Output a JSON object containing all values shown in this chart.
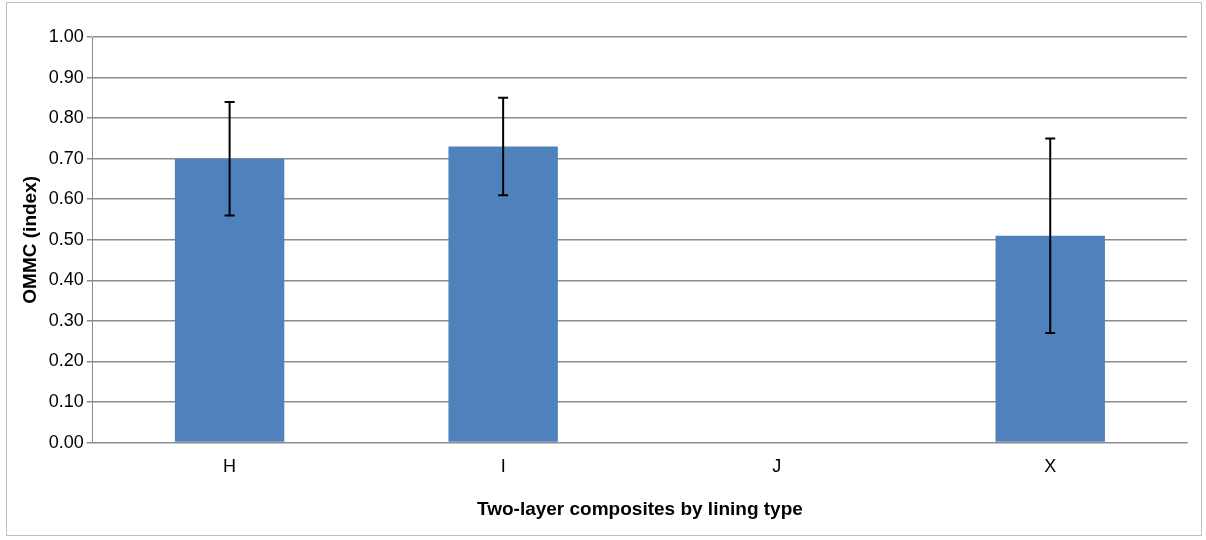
{
  "chart_data": {
    "type": "bar",
    "xlabel": "Two-layer composites by lining type",
    "ylabel": "OMMC (index)",
    "categories": [
      "H",
      "I",
      "J",
      "X"
    ],
    "values": [
      0.7,
      0.73,
      0,
      0.51
    ],
    "errors": [
      0.14,
      0.12,
      null,
      0.24
    ],
    "color": "#4f81bd",
    "ylim": [
      0,
      1
    ],
    "yticks": [
      {
        "value": 0,
        "label": "0.00"
      },
      {
        "value": 0.1,
        "label": "0.10"
      },
      {
        "value": 0.2,
        "label": "0.20"
      },
      {
        "value": 0.3,
        "label": "0.30"
      },
      {
        "value": 0.4,
        "label": "0.40"
      },
      {
        "value": 0.5,
        "label": "0.50"
      },
      {
        "value": 0.6,
        "label": "0.60"
      },
      {
        "value": 0.7,
        "label": "0.70"
      },
      {
        "value": 0.8,
        "label": "0.80"
      },
      {
        "value": 0.9,
        "label": "0.90"
      },
      {
        "value": 1,
        "label": "1.00"
      }
    ],
    "grid": "y"
  }
}
